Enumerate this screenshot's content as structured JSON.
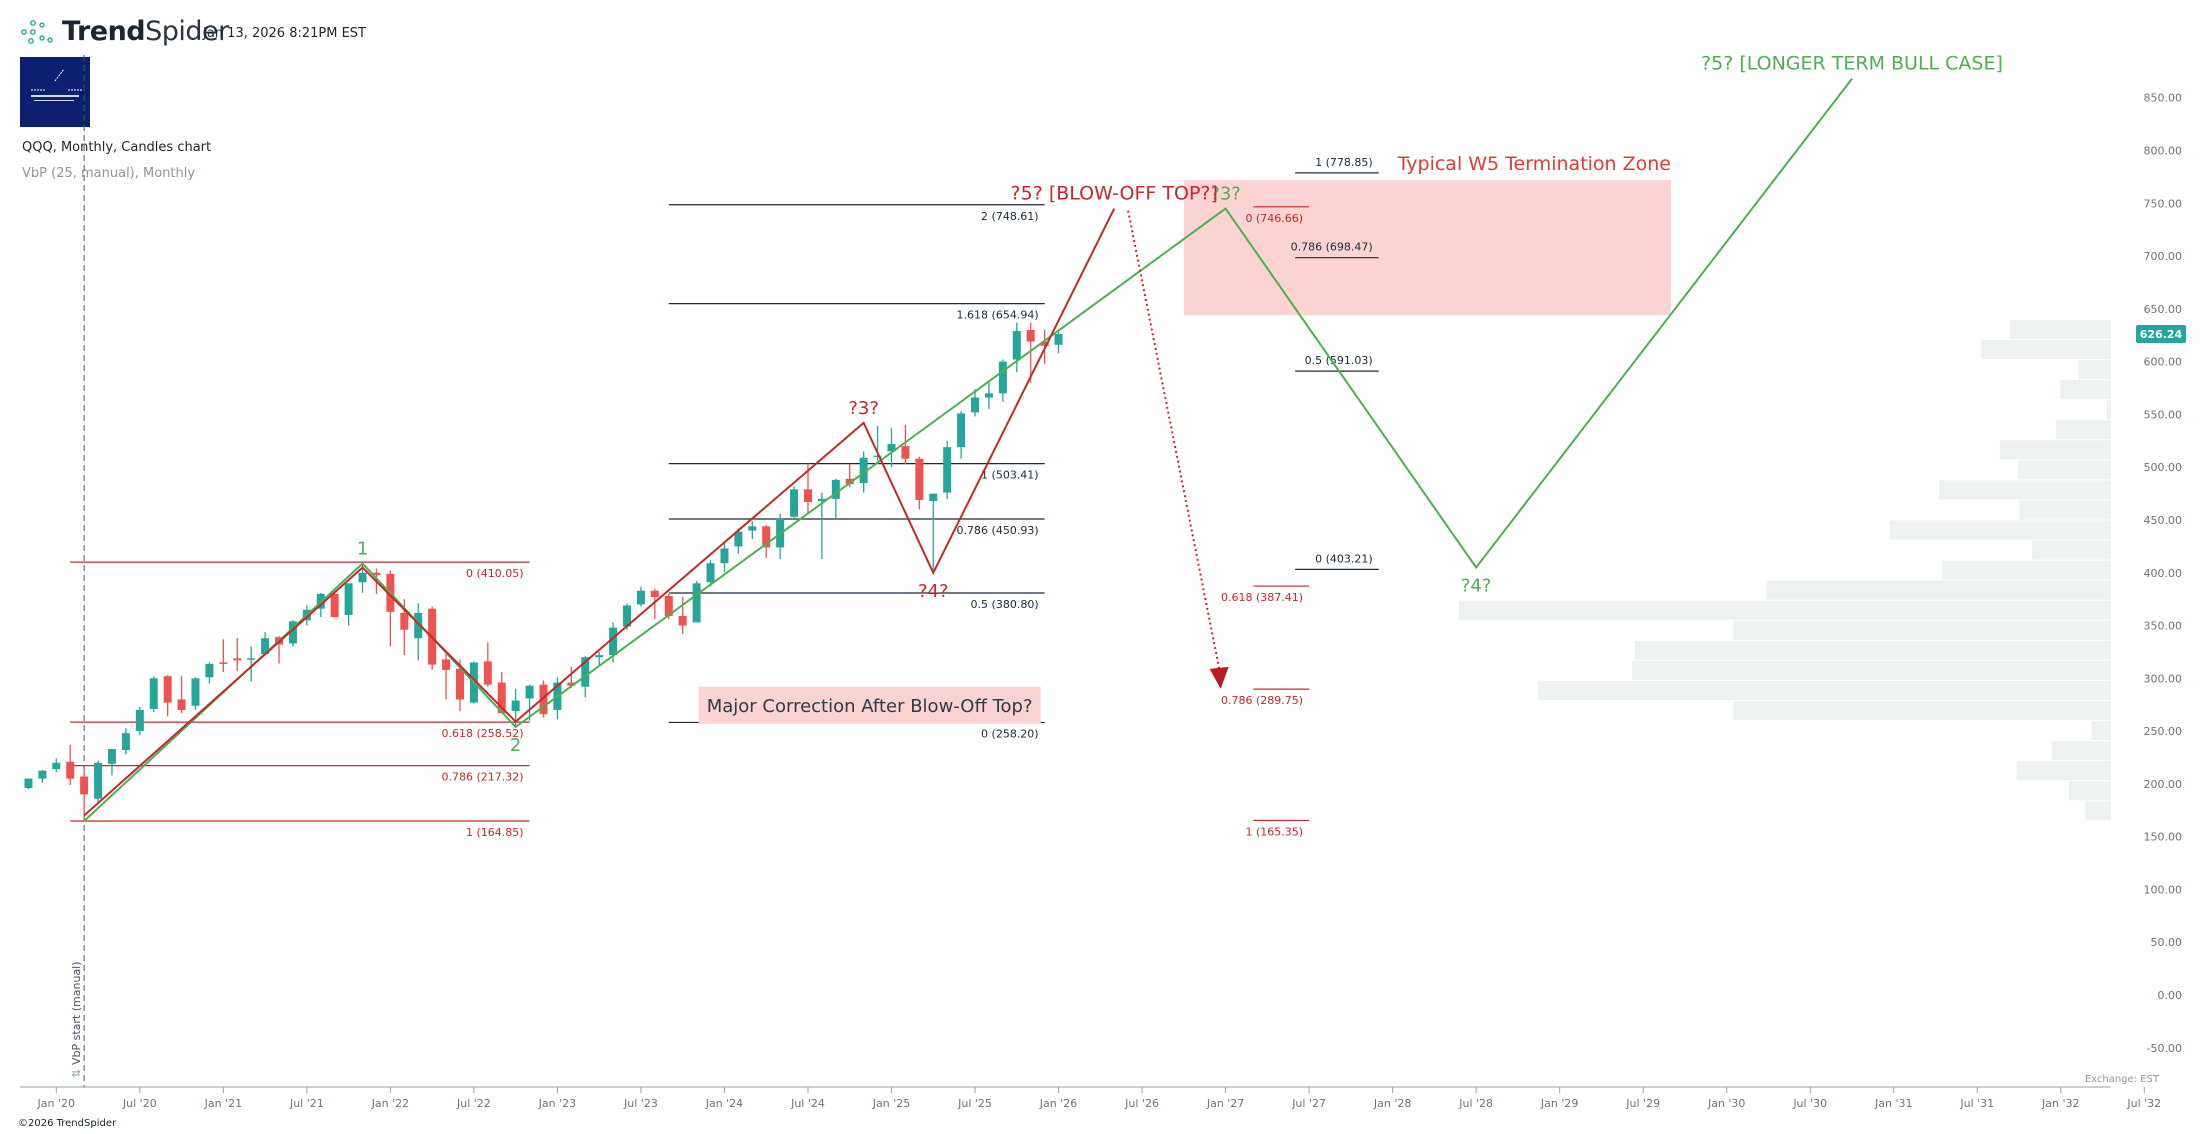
{
  "header": {
    "brand_bold": "Trend",
    "brand_light": "Spider",
    "timestamp": "Jan 13, 2026 8:21PM EST",
    "symbol_line": "QQQ, Monthly, Candles chart",
    "indicator_line": "VbP (25, manual), Monthly",
    "logo_icon": "spider-web-icon"
  },
  "footer": {
    "copyright": "©2026 TrendSpider",
    "exchange": "Exchange: EST"
  },
  "colors": {
    "up": "#26a69a",
    "down": "#ef5350",
    "green_wave": "#4caf50",
    "red_wave": "#c62828",
    "zone_fill": "#fbd3d3",
    "vbp": "#eef1f2",
    "price_tag": "#26a69a"
  },
  "chart_data": {
    "type": "candlestick",
    "title": "QQQ, Monthly, Candles chart",
    "ylim": [
      -60,
      880
    ],
    "y_ticks": [
      "850.00",
      "800.00",
      "750.00",
      "700.00",
      "650.00",
      "600.00",
      "550.00",
      "500.00",
      "450.00",
      "400.00",
      "350.00",
      "300.00",
      "250.00",
      "200.00",
      "150.00",
      "100.00",
      "50.00",
      "0.00",
      "-50.00"
    ],
    "y_tick_values": [
      850,
      800,
      750,
      700,
      650,
      600,
      550,
      500,
      450,
      400,
      350,
      300,
      250,
      200,
      150,
      100,
      50,
      0,
      -50
    ],
    "x_ticks": [
      "Jan '20",
      "Jul '20",
      "Jan '21",
      "Jul '21",
      "Jan '22",
      "Jul '22",
      "Jan '23",
      "Jul '23",
      "Jan '24",
      "Jul '24",
      "Jan '25",
      "Jul '25",
      "Jan '26",
      "Jul '26",
      "Jan '27",
      "Jul '27",
      "Jan '28",
      "Jul '28",
      "Jan '29",
      "Jul '29",
      "Jan '30",
      "Jul '30",
      "Jan '31",
      "Jul '31",
      "Jan '32",
      "Jul '32"
    ],
    "last_price": "626.24",
    "last_price_value": 626.24,
    "candles_start": "2019-11",
    "candles": [
      [
        196,
        205,
        195,
        205
      ],
      [
        205,
        213,
        201,
        212.6
      ],
      [
        214,
        224,
        211,
        220
      ],
      [
        221,
        237,
        199,
        205
      ],
      [
        207,
        215,
        164.9,
        190
      ],
      [
        186,
        222,
        181,
        220
      ],
      [
        219,
        233,
        208,
        233
      ],
      [
        232,
        253,
        228,
        248
      ],
      [
        250,
        273,
        246,
        270
      ],
      [
        271,
        302,
        268,
        300
      ],
      [
        302,
        303,
        264,
        277
      ],
      [
        280,
        302,
        267,
        270
      ],
      [
        274,
        301,
        270,
        300
      ],
      [
        301,
        315,
        295,
        313.7
      ],
      [
        315,
        337,
        306,
        314
      ],
      [
        319,
        338,
        307,
        317
      ],
      [
        318,
        330,
        297,
        319
      ],
      [
        323,
        344,
        322,
        338
      ],
      [
        339,
        340,
        314,
        332
      ],
      [
        333,
        355,
        330,
        354
      ],
      [
        355,
        369,
        350,
        365
      ],
      [
        366,
        381,
        358,
        380
      ],
      [
        380,
        382,
        358,
        358
      ],
      [
        360,
        390,
        350,
        390
      ],
      [
        391,
        408.7,
        381,
        400
      ],
      [
        400,
        404,
        380,
        397.9
      ],
      [
        399,
        402,
        330,
        363
      ],
      [
        362,
        375,
        322,
        346
      ],
      [
        338,
        371,
        317,
        362
      ],
      [
        366,
        368,
        308,
        313
      ],
      [
        318,
        324,
        280,
        308
      ],
      [
        309,
        318,
        269,
        280
      ],
      [
        277,
        316,
        276,
        315
      ],
      [
        316,
        334,
        292,
        294
      ],
      [
        296,
        306,
        267,
        267
      ],
      [
        269,
        290,
        254,
        279
      ],
      [
        281,
        294,
        260,
        293
      ],
      [
        294,
        298,
        263,
        266
      ],
      [
        270,
        301,
        261,
        296
      ],
      [
        296,
        311,
        291,
        293
      ],
      [
        292,
        321,
        282,
        320
      ],
      [
        320,
        325,
        312,
        322
      ],
      [
        322,
        353,
        315,
        348
      ],
      [
        349,
        371,
        346,
        369
      ],
      [
        370,
        387,
        368,
        383
      ],
      [
        383,
        385,
        356,
        377
      ],
      [
        378,
        380,
        356,
        359
      ],
      [
        359,
        377,
        342,
        350
      ],
      [
        353,
        392,
        353,
        390
      ],
      [
        391,
        412,
        387,
        409
      ],
      [
        409,
        428,
        401,
        423
      ],
      [
        425,
        442,
        418,
        439
      ],
      [
        440,
        449,
        432,
        444
      ],
      [
        444,
        445,
        414,
        424
      ],
      [
        424,
        456,
        413,
        451
      ],
      [
        453,
        482,
        451,
        479
      ],
      [
        479,
        503.5,
        456,
        467
      ],
      [
        468,
        476,
        413,
        470
      ],
      [
        470,
        489,
        450,
        488
      ],
      [
        489,
        503,
        481,
        484
      ],
      [
        485,
        515,
        476,
        509
      ],
      [
        511,
        539,
        506,
        511
      ],
      [
        515,
        537,
        500,
        522
      ],
      [
        520,
        540,
        503,
        508
      ],
      [
        508,
        510,
        460,
        469
      ],
      [
        468,
        471,
        402.4,
        475
      ],
      [
        476,
        525,
        470,
        519
      ],
      [
        519,
        553,
        508,
        551
      ],
      [
        552,
        574,
        548,
        566
      ],
      [
        566,
        580,
        555,
        570
      ],
      [
        570,
        602,
        562,
        600
      ],
      [
        602,
        637,
        590,
        629
      ],
      [
        630,
        637,
        580,
        619
      ],
      [
        619,
        630,
        598,
        615
      ],
      [
        616,
        629,
        608,
        626.24
      ]
    ],
    "vbp": {
      "label": "VbP (25, manual)",
      "start": "2020-03",
      "start_label": "VbP start (manual)",
      "price_low": 165,
      "price_high": 640,
      "volumes_top_to_bottom": [
        72,
        92,
        23,
        36,
        3,
        39,
        79,
        66,
        122,
        65,
        157,
        56,
        120,
        245,
        463,
        268,
        338,
        340,
        407,
        268,
        14,
        42,
        67,
        30,
        18
      ]
    },
    "fib_sets": [
      {
        "name": "fib-2020-2022",
        "color": "#c62828",
        "from": "2020-02",
        "to": "2022-11",
        "label_pos": "below",
        "levels": [
          {
            "label": "0 (410.05)",
            "price": 410.05
          },
          {
            "label": "0.618 (258.52)",
            "price": 258.52
          },
          {
            "label": "0.786 (217.32)",
            "price": 217.32
          },
          {
            "label": "1 (164.85)",
            "price": 164.85
          }
        ]
      },
      {
        "name": "fib-extension-2023",
        "color": "#1c2a3a",
        "from": "2023-09",
        "to": "2025-12",
        "label_pos": "below",
        "levels": [
          {
            "label": "2 (748.61)",
            "price": 748.61
          },
          {
            "label": "1.618 (654.94)",
            "price": 654.94
          },
          {
            "label": "1 (503.41)",
            "price": 503.41
          },
          {
            "label": "0.786 (450.93)",
            "price": 450.93
          },
          {
            "label": "0.5 (380.80)",
            "price": 380.8
          },
          {
            "label": "0 (258.20)",
            "price": 258.2
          }
        ]
      },
      {
        "name": "fib-future-black",
        "color": "#1c2a3a",
        "from": "2027-06",
        "to": "2027-12",
        "label_pos": "above",
        "levels": [
          {
            "label": "1 (778.85)",
            "price": 778.85
          },
          {
            "label": "0.786 (698.47)",
            "price": 698.47
          },
          {
            "label": "0.5 (591.03)",
            "price": 591.03
          },
          {
            "label": "0 (403.21)",
            "price": 403.21
          }
        ]
      },
      {
        "name": "fib-future-red",
        "color": "#c62828",
        "from": "2027-03",
        "to": "2027-07",
        "label_pos": "below",
        "levels": [
          {
            "label": "0 (746.66)",
            "price": 746.66
          },
          {
            "label": "0.618 (387.41)",
            "price": 387.41
          },
          {
            "label": "0.786 (289.75)",
            "price": 289.75
          },
          {
            "label": "1 (165.35)",
            "price": 165.35
          }
        ]
      }
    ],
    "waves": [
      {
        "name": "green-wave-count",
        "color": "#4caf50",
        "points": [
          {
            "date": "2020-03",
            "price": 164.85,
            "label": ""
          },
          {
            "date": "2021-11",
            "price": 408.7,
            "label": "1",
            "label_pos": "above"
          },
          {
            "date": "2022-10",
            "price": 254,
            "label": "2",
            "label_pos": "below"
          },
          {
            "date": "2027-01",
            "price": 745,
            "label": "?3?",
            "label_pos": "above"
          },
          {
            "date": "2028-07",
            "price": 405,
            "label": "?4?",
            "label_pos": "below"
          },
          {
            "date": "2030-10",
            "price": 868,
            "label": "?5? [LONGER TERM BULL CASE]",
            "label_pos": "above"
          }
        ]
      },
      {
        "name": "red-wave-count",
        "color": "#c62828",
        "points": [
          {
            "date": "2020-03",
            "price": 170,
            "label": ""
          },
          {
            "date": "2021-11",
            "price": 405,
            "label": ""
          },
          {
            "date": "2022-10",
            "price": 259,
            "label": ""
          },
          {
            "date": "2024-11",
            "price": 542,
            "label": "?3?",
            "label_pos": "above"
          },
          {
            "date": "2025-04",
            "price": 400,
            "label": "?4?",
            "label_pos": "below"
          },
          {
            "date": "2026-05",
            "price": 745,
            "label": "?5? [BLOW-OFF TOP?]",
            "label_pos": "above"
          }
        ]
      }
    ],
    "zone": {
      "label": "Typical W5 Termination Zone",
      "from": "2026-10",
      "to": "2029-09",
      "price_low": 644,
      "price_high": 772
    },
    "arrow": {
      "from_date": "2026-06",
      "from_price": 743,
      "to_date": "2026-12",
      "to_price": 290
    },
    "callout": {
      "text": "Major Correction After Blow-Off Top?",
      "date": "2025-12",
      "price": 274
    }
  }
}
